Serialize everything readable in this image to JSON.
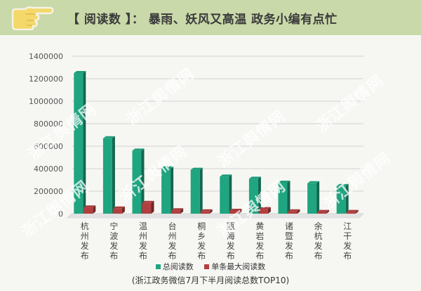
{
  "header": {
    "title": "【 阅读数 】： 暴雨、妖风又高温 政务小编有点忙",
    "background": "#c9d9a9"
  },
  "watermark": "浙江舆情网",
  "caption": "(浙江政务微信7月下半月阅读总数TOP10)",
  "colors": {
    "total": "#1fa57f",
    "single": "#b23f3f",
    "grid": "#d3d3d3"
  },
  "chart_data": {
    "type": "bar",
    "categories": [
      "杭州发布",
      "宁波发布",
      "温州发布",
      "台州发布",
      "桐乡发布",
      "瓯海发布",
      "黄岩发布",
      "诸暨发布",
      "余杭发布",
      "江干发布"
    ],
    "series": [
      {
        "name": "总阅读数",
        "values": [
          1250000,
          670000,
          560000,
          405000,
          390000,
          330000,
          310000,
          275000,
          270000,
          245000
        ]
      },
      {
        "name": "单条最大阅读数",
        "values": [
          55000,
          45000,
          95000,
          30000,
          20000,
          25000,
          40000,
          20000,
          15000,
          15000
        ]
      }
    ],
    "ylim": [
      0,
      1400000
    ],
    "yticks": [
      "0",
      "200000",
      "400000",
      "600000",
      "800000",
      "1000000",
      "1200000",
      "1400000"
    ],
    "ytick_values": [
      0,
      200000,
      400000,
      600000,
      800000,
      1000000,
      1200000,
      1400000
    ],
    "legend_position": "bottom",
    "grid": true
  }
}
